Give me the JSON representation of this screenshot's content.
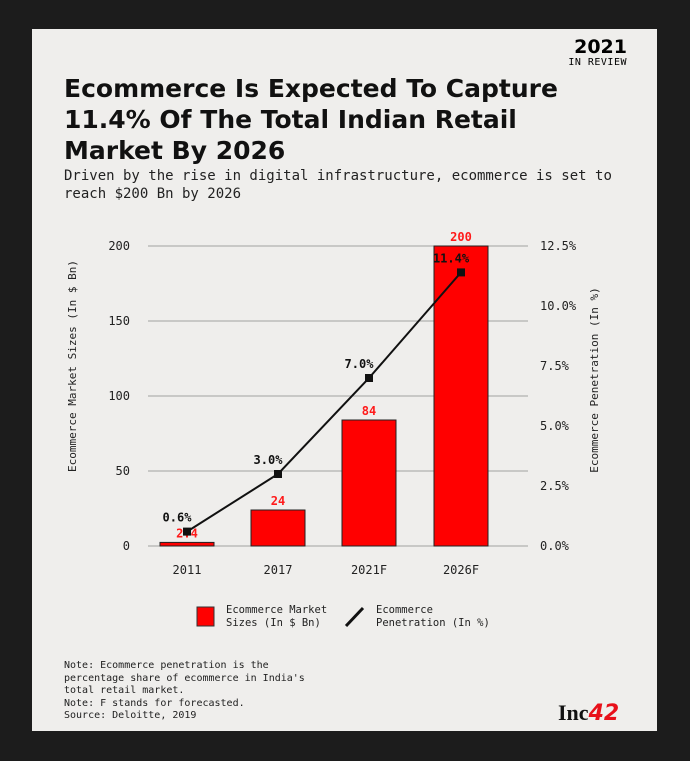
{
  "badge": {
    "year": "2021",
    "label": "IN REVIEW"
  },
  "title": "Ecommerce Is Expected To Capture 11.4% Of The Total Indian Retail Market By 2026",
  "subtitle": "Driven by the rise in digital infrastructure, ecommerce is set to reach $200 Bn by 2026",
  "chart_data": {
    "type": "bar+line",
    "categories": [
      "2011",
      "2017",
      "2021F",
      "2026F"
    ],
    "series": [
      {
        "name": "Ecommerce Market Sizes (In $ Bn)",
        "type": "bar",
        "axis": "left",
        "values": [
          2.4,
          24,
          84,
          200
        ],
        "labels": [
          "2.4",
          "24",
          "84",
          "200"
        ],
        "color": "#ff0000"
      },
      {
        "name": "Ecommerce Penetration (In %)",
        "type": "line",
        "axis": "right",
        "values": [
          0.6,
          3.0,
          7.0,
          11.4
        ],
        "labels": [
          "0.6%",
          "3.0%",
          "7.0%",
          "11.4%"
        ],
        "color": "#111111"
      }
    ],
    "ylabel": "Ecommerce Market Sizes (In $ Bn)",
    "y2label": "Ecommerce Penetration (In %)",
    "ylim": [
      0,
      200
    ],
    "yticks": [
      "0",
      "50",
      "100",
      "150",
      "200"
    ],
    "y2lim": [
      0,
      12.5
    ],
    "y2ticks": [
      "0.0%",
      "2.5%",
      "5.0%",
      "7.5%",
      "10.0%",
      "12.5%"
    ],
    "grid": true,
    "legend": "bottom"
  },
  "legend": {
    "bar": "Ecommerce Market\nSizes (In $ Bn)",
    "line": "Ecommerce\nPenetration (In %)"
  },
  "notes": "Note: Ecommerce penetration is the\npercentage share of ecommerce in India's\ntotal retail market.\nNote: F stands for forecasted.\nSource: Deloitte, 2019",
  "logo": {
    "text": "Inc",
    "accent": "42"
  }
}
